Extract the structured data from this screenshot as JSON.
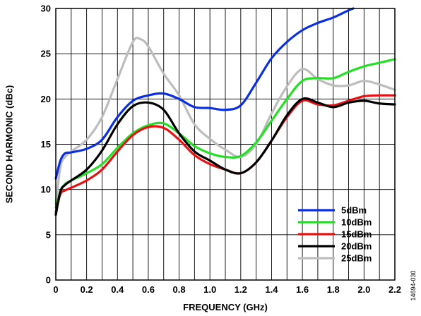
{
  "chart_data": {
    "type": "line",
    "xlabel": "FREQUENCY (GHz)",
    "ylabel": "SECOND HARMONIC (dBc)",
    "xlim": [
      0,
      2.2
    ],
    "ylim": [
      0,
      30
    ],
    "x_ticks": [
      "0",
      "0.2",
      "0.4",
      "0.6",
      "0.8",
      "1.0",
      "1.2",
      "1.4",
      "1.6",
      "1.8",
      "2.0",
      "2.2"
    ],
    "y_ticks": [
      "0",
      "5",
      "10",
      "15",
      "20",
      "25",
      "30"
    ],
    "grid": true,
    "legend_position": "bottom-right",
    "figure_id": "14694-030",
    "series": [
      {
        "name": "5dBm",
        "color": "#0a2ee6",
        "x": [
          0.0,
          0.03,
          0.06,
          0.1,
          0.2,
          0.3,
          0.4,
          0.5,
          0.6,
          0.7,
          0.8,
          0.9,
          1.0,
          1.1,
          1.2,
          1.3,
          1.4,
          1.5,
          1.6,
          1.7,
          1.8,
          1.9,
          1.93
        ],
        "y": [
          11.2,
          13.2,
          14.0,
          14.1,
          14.5,
          15.5,
          18.0,
          19.8,
          20.4,
          20.6,
          20.0,
          19.1,
          19.0,
          18.8,
          19.3,
          21.8,
          24.5,
          26.3,
          27.6,
          28.4,
          29.0,
          29.8,
          30.0
        ]
      },
      {
        "name": "10dBm",
        "color": "#22e022",
        "x": [
          0.0,
          0.03,
          0.06,
          0.1,
          0.2,
          0.3,
          0.4,
          0.5,
          0.6,
          0.7,
          0.8,
          0.9,
          1.0,
          1.1,
          1.2,
          1.3,
          1.4,
          1.5,
          1.6,
          1.7,
          1.8,
          1.9,
          2.0,
          2.1,
          2.2
        ],
        "y": [
          8.0,
          9.8,
          10.6,
          11.0,
          11.8,
          12.8,
          14.6,
          16.2,
          17.1,
          17.3,
          16.2,
          14.8,
          14.0,
          13.6,
          13.7,
          15.2,
          17.6,
          20.0,
          22.0,
          22.3,
          22.3,
          23.0,
          23.6,
          24.0,
          24.4
        ]
      },
      {
        "name": "15dBm",
        "color": "#e81010",
        "x": [
          0.0,
          0.03,
          0.06,
          0.1,
          0.2,
          0.3,
          0.4,
          0.5,
          0.6,
          0.7,
          0.8,
          0.9,
          1.0,
          1.1,
          1.2,
          1.3,
          1.4,
          1.5,
          1.6,
          1.7,
          1.8,
          1.9,
          2.0,
          2.1,
          2.2
        ],
        "y": [
          7.5,
          9.5,
          9.9,
          10.2,
          11.0,
          12.2,
          14.2,
          16.0,
          16.9,
          16.8,
          15.5,
          13.8,
          12.8,
          12.2,
          11.8,
          13.0,
          15.4,
          18.0,
          19.8,
          19.4,
          19.3,
          19.8,
          20.3,
          20.4,
          20.4
        ]
      },
      {
        "name": "20dBm",
        "color": "#000000",
        "x": [
          0.0,
          0.03,
          0.06,
          0.1,
          0.2,
          0.3,
          0.4,
          0.5,
          0.6,
          0.7,
          0.8,
          0.9,
          1.0,
          1.1,
          1.2,
          1.3,
          1.4,
          1.5,
          1.6,
          1.7,
          1.8,
          1.9,
          2.0,
          2.1,
          2.2
        ],
        "y": [
          7.2,
          9.8,
          10.5,
          11.0,
          12.2,
          14.3,
          17.2,
          19.2,
          19.6,
          18.8,
          16.2,
          14.2,
          13.2,
          12.2,
          11.8,
          13.0,
          15.4,
          18.2,
          20.0,
          19.6,
          19.1,
          19.6,
          19.8,
          19.5,
          19.4
        ]
      },
      {
        "name": "25dBm",
        "color": "#bdbdbd",
        "x": [
          0.0,
          0.03,
          0.06,
          0.1,
          0.2,
          0.3,
          0.4,
          0.5,
          0.55,
          0.6,
          0.7,
          0.8,
          0.9,
          1.0,
          1.1,
          1.2,
          1.3,
          1.4,
          1.5,
          1.6,
          1.7,
          1.8,
          1.9,
          2.0,
          2.1,
          2.2
        ],
        "y": [
          8.4,
          12.5,
          13.6,
          14.2,
          15.5,
          18.0,
          22.2,
          26.3,
          26.6,
          25.8,
          22.8,
          20.4,
          17.2,
          15.6,
          14.4,
          13.6,
          15.0,
          18.4,
          21.4,
          23.3,
          22.2,
          21.5,
          21.5,
          22.0,
          21.6,
          21.0
        ]
      }
    ]
  }
}
